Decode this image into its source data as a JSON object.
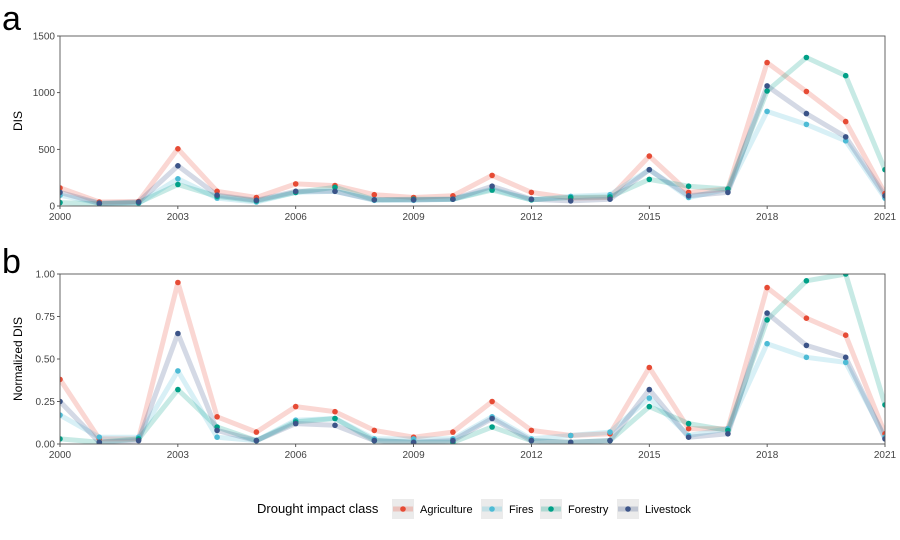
{
  "chart_data": [
    {
      "type": "line",
      "panel_label": "a",
      "title": "",
      "xlabel": "",
      "ylabel": "DIS",
      "x": [
        2000,
        2001,
        2002,
        2003,
        2004,
        2005,
        2006,
        2007,
        2008,
        2009,
        2010,
        2011,
        2012,
        2013,
        2014,
        2015,
        2016,
        2017,
        2018,
        2019,
        2020,
        2021
      ],
      "xticks": [
        2000,
        2003,
        2006,
        2009,
        2012,
        2015,
        2018,
        2021
      ],
      "yticks": [
        0,
        500,
        1000,
        1500
      ],
      "ylim": [
        0,
        1500
      ],
      "xlim": [
        2000,
        2021
      ],
      "series": [
        {
          "name": "Agriculture",
          "values": [
            160,
            35,
            40,
            505,
            130,
            75,
            195,
            180,
            100,
            75,
            90,
            270,
            120,
            70,
            75,
            440,
            120,
            150,
            1265,
            1010,
            745,
            110
          ]
        },
        {
          "name": "Fires",
          "values": [
            95,
            25,
            25,
            240,
            70,
            35,
            120,
            130,
            50,
            50,
            60,
            150,
            55,
            85,
            100,
            320,
            75,
            150,
            835,
            720,
            575,
            70
          ]
        },
        {
          "name": "Forestry",
          "values": [
            30,
            20,
            30,
            190,
            85,
            45,
            120,
            165,
            55,
            60,
            60,
            140,
            55,
            75,
            80,
            235,
            175,
            150,
            1015,
            1310,
            1150,
            320
          ]
        },
        {
          "name": "Livestock",
          "values": [
            120,
            25,
            35,
            355,
            95,
            50,
            130,
            130,
            55,
            55,
            60,
            175,
            60,
            45,
            60,
            320,
            90,
            120,
            1060,
            815,
            610,
            90
          ]
        }
      ]
    },
    {
      "type": "line",
      "panel_label": "b",
      "title": "",
      "xlabel": "",
      "ylabel": "Normalized DIS",
      "x": [
        2000,
        2001,
        2002,
        2003,
        2004,
        2005,
        2006,
        2007,
        2008,
        2009,
        2010,
        2011,
        2012,
        2013,
        2014,
        2015,
        2016,
        2017,
        2018,
        2019,
        2020,
        2021
      ],
      "xticks": [
        2000,
        2003,
        2006,
        2009,
        2012,
        2015,
        2018,
        2021
      ],
      "yticks": [
        "0.00",
        "0.25",
        "0.50",
        "0.75",
        "1.00"
      ],
      "ylim": [
        0,
        1
      ],
      "xlim": [
        2000,
        2021
      ],
      "series": [
        {
          "name": "Agriculture",
          "values": [
            0.38,
            0.03,
            0.03,
            0.95,
            0.16,
            0.07,
            0.22,
            0.19,
            0.08,
            0.04,
            0.07,
            0.25,
            0.08,
            0.05,
            0.06,
            0.45,
            0.09,
            0.09,
            0.92,
            0.74,
            0.64,
            0.06
          ]
        },
        {
          "name": "Fires",
          "values": [
            0.17,
            0.04,
            0.04,
            0.43,
            0.04,
            0.02,
            0.14,
            0.15,
            0.03,
            0.03,
            0.03,
            0.16,
            0.03,
            0.05,
            0.07,
            0.27,
            0.05,
            0.09,
            0.59,
            0.51,
            0.48,
            0.04
          ]
        },
        {
          "name": "Forestry",
          "values": [
            0.03,
            0.01,
            0.03,
            0.32,
            0.1,
            0.02,
            0.13,
            0.15,
            0.02,
            0.01,
            0.01,
            0.1,
            0.02,
            0.01,
            0.02,
            0.22,
            0.12,
            0.08,
            0.73,
            0.96,
            1.0,
            0.23
          ]
        },
        {
          "name": "Livestock",
          "values": [
            0.25,
            0.01,
            0.02,
            0.65,
            0.08,
            0.02,
            0.12,
            0.11,
            0.02,
            0.01,
            0.02,
            0.15,
            0.02,
            0.01,
            0.02,
            0.32,
            0.04,
            0.06,
            0.77,
            0.58,
            0.51,
            0.03
          ]
        }
      ]
    }
  ],
  "legend": {
    "title": "Drought impact class",
    "placement": "bottom",
    "items": [
      {
        "label": "Agriculture",
        "color": "#e64b35"
      },
      {
        "label": "Fires",
        "color": "#4dbbd5"
      },
      {
        "label": "Forestry",
        "color": "#00a087"
      },
      {
        "label": "Livestock",
        "color": "#3c5488"
      }
    ]
  }
}
